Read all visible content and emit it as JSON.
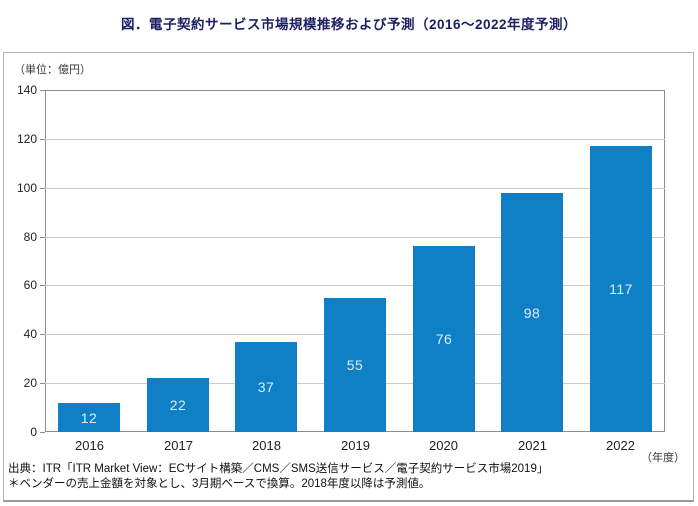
{
  "title": "図．電子契約サービス市場規模推移および予測（2016～2022年度予測）",
  "unit_label": "（単位：億円）",
  "year_axis_label": "（年度）",
  "footnote": {
    "source": "出典：ITR「ITR Market View：ECサイト構築／CMS／SMS送信サービス／電子契約サービス市場2019」",
    "note": "＊ベンダーの売上金額を対象とし、3月期ベースで換算。2018年度以降は予測値。"
  },
  "colors": {
    "bar": "#0f80c5",
    "bar_value_label": "#dcebf7",
    "title_text": "#1e1e64",
    "grid": "#cccccc",
    "plot_border": "#8c8c8c",
    "outer_border": "#b3b3b3",
    "axis_text": "#222222"
  },
  "chart_data": {
    "type": "bar",
    "categories": [
      "2016",
      "2017",
      "2018",
      "2019",
      "2020",
      "2021",
      "2022"
    ],
    "values": [
      12,
      22,
      37,
      55,
      76,
      98,
      117
    ],
    "title": "図．電子契約サービス市場規模推移および予測（2016～2022年度予測）",
    "xlabel": "年度",
    "ylabel": "億円",
    "ylim": [
      0,
      140
    ],
    "ytick_step": 20,
    "yticks": [
      0,
      20,
      40,
      60,
      80,
      100,
      120,
      140
    ],
    "grid": true,
    "legend": false,
    "value_labels_inside_bars": true
  }
}
